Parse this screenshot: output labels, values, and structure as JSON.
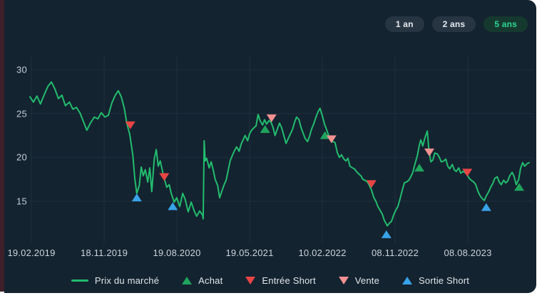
{
  "period_buttons": [
    {
      "label": "1 an",
      "selected": false
    },
    {
      "label": "2 ans",
      "selected": false
    },
    {
      "label": "5 ans",
      "selected": true
    }
  ],
  "legend": [
    {
      "label": "Prix du marché",
      "swatch": "line",
      "color": "#22bd6e"
    },
    {
      "label": "Achat",
      "swatch": "triangle-up",
      "color": "#1fa45c"
    },
    {
      "label": "Entrée Short",
      "swatch": "triangle-down",
      "color": "#e84545"
    },
    {
      "label": "Vente",
      "swatch": "triangle-down",
      "color": "#f29191"
    },
    {
      "label": "Sortie Short",
      "swatch": "triangle-up",
      "color": "#38a3e8"
    }
  ],
  "colors": {
    "background": "#142330",
    "grid": "#1e2f3c",
    "line": "#22bd6e",
    "achat": "#1fa45c",
    "entree_short": "#e84545",
    "vente": "#f29191",
    "sortie_short": "#38a3e8"
  },
  "chart_data": {
    "type": "line",
    "title": "",
    "series_name": "Prix du marché",
    "x_tick_labels": [
      "19.02.2019",
      "18.11.2019",
      "19.08.2020",
      "19.05.2021",
      "10.02.2022",
      "08.11.2022",
      "08.08.2023"
    ],
    "y_ticks": [
      30,
      25,
      20,
      15
    ],
    "ylim": [
      10.5,
      31.5
    ],
    "grid": true,
    "legend_position": "bottom",
    "points": [
      [
        0.0,
        26.9
      ],
      [
        0.007,
        26.3
      ],
      [
        0.014,
        27.0
      ],
      [
        0.021,
        26.1
      ],
      [
        0.029,
        27.2
      ],
      [
        0.036,
        28.1
      ],
      [
        0.043,
        28.6
      ],
      [
        0.05,
        27.8
      ],
      [
        0.057,
        26.7
      ],
      [
        0.064,
        27.1
      ],
      [
        0.071,
        25.9
      ],
      [
        0.079,
        26.3
      ],
      [
        0.086,
        25.5
      ],
      [
        0.093,
        25.7
      ],
      [
        0.1,
        25.1
      ],
      [
        0.107,
        24.1
      ],
      [
        0.114,
        23.1
      ],
      [
        0.121,
        23.9
      ],
      [
        0.129,
        24.6
      ],
      [
        0.136,
        24.4
      ],
      [
        0.143,
        25.1
      ],
      [
        0.15,
        24.6
      ],
      [
        0.157,
        24.8
      ],
      [
        0.164,
        26.2
      ],
      [
        0.171,
        27.1
      ],
      [
        0.177,
        27.6
      ],
      [
        0.183,
        26.9
      ],
      [
        0.189,
        25.6
      ],
      [
        0.194,
        23.9
      ],
      [
        0.2,
        22.6
      ],
      [
        0.206,
        20.3
      ],
      [
        0.21,
        17.6
      ],
      [
        0.214,
        15.9
      ],
      [
        0.219,
        16.8
      ],
      [
        0.223,
        18.9
      ],
      [
        0.227,
        17.9
      ],
      [
        0.231,
        18.6
      ],
      [
        0.236,
        17.2
      ],
      [
        0.24,
        18.8
      ],
      [
        0.244,
        16.1
      ],
      [
        0.249,
        19.8
      ],
      [
        0.253,
        20.9
      ],
      [
        0.257,
        19.0
      ],
      [
        0.261,
        19.6
      ],
      [
        0.266,
        18.3
      ],
      [
        0.27,
        17.4
      ],
      [
        0.274,
        16.6
      ],
      [
        0.279,
        16.9
      ],
      [
        0.283,
        15.9
      ],
      [
        0.289,
        14.9
      ],
      [
        0.294,
        15.4
      ],
      [
        0.3,
        14.4
      ],
      [
        0.306,
        15.9
      ],
      [
        0.311,
        15.2
      ],
      [
        0.317,
        13.8
      ],
      [
        0.323,
        14.9
      ],
      [
        0.329,
        13.9
      ],
      [
        0.334,
        13.3
      ],
      [
        0.34,
        13.9
      ],
      [
        0.346,
        13.4
      ],
      [
        0.347,
        13.0
      ],
      [
        0.349,
        21.9
      ],
      [
        0.351,
        19.6
      ],
      [
        0.354,
        19.9
      ],
      [
        0.359,
        18.8
      ],
      [
        0.363,
        19.5
      ],
      [
        0.367,
        18.6
      ],
      [
        0.371,
        17.5
      ],
      [
        0.376,
        16.8
      ],
      [
        0.38,
        15.4
      ],
      [
        0.384,
        16.1
      ],
      [
        0.389,
        16.9
      ],
      [
        0.393,
        17.4
      ],
      [
        0.397,
        18.5
      ],
      [
        0.401,
        19.6
      ],
      [
        0.406,
        20.3
      ],
      [
        0.41,
        20.8
      ],
      [
        0.414,
        21.2
      ],
      [
        0.419,
        20.7
      ],
      [
        0.423,
        21.5
      ],
      [
        0.427,
        22.0
      ],
      [
        0.431,
        22.5
      ],
      [
        0.436,
        21.9
      ],
      [
        0.44,
        22.7
      ],
      [
        0.444,
        23.1
      ],
      [
        0.449,
        23.4
      ],
      [
        0.453,
        23.6
      ],
      [
        0.457,
        24.9
      ],
      [
        0.461,
        24.2
      ],
      [
        0.466,
        23.7
      ],
      [
        0.47,
        24.3
      ],
      [
        0.474,
        23.8
      ],
      [
        0.479,
        24.2
      ],
      [
        0.483,
        24.0
      ],
      [
        0.487,
        23.4
      ],
      [
        0.491,
        22.5
      ],
      [
        0.496,
        23.3
      ],
      [
        0.5,
        23.9
      ],
      [
        0.504,
        23.4
      ],
      [
        0.509,
        22.4
      ],
      [
        0.513,
        21.6
      ],
      [
        0.517,
        22.1
      ],
      [
        0.521,
        22.6
      ],
      [
        0.526,
        23.2
      ],
      [
        0.53,
        24.0
      ],
      [
        0.534,
        24.6
      ],
      [
        0.539,
        24.3
      ],
      [
        0.543,
        23.4
      ],
      [
        0.547,
        22.8
      ],
      [
        0.551,
        22.2
      ],
      [
        0.556,
        21.8
      ],
      [
        0.56,
        22.4
      ],
      [
        0.564,
        23.2
      ],
      [
        0.569,
        23.9
      ],
      [
        0.573,
        24.6
      ],
      [
        0.577,
        25.2
      ],
      [
        0.581,
        25.6
      ],
      [
        0.586,
        24.7
      ],
      [
        0.59,
        23.8
      ],
      [
        0.594,
        23.2
      ],
      [
        0.599,
        22.4
      ],
      [
        0.603,
        22.0
      ],
      [
        0.607,
        21.8
      ],
      [
        0.611,
        21.7
      ],
      [
        0.616,
        20.5
      ],
      [
        0.62,
        20.0
      ],
      [
        0.624,
        20.3
      ],
      [
        0.629,
        19.8
      ],
      [
        0.633,
        19.6
      ],
      [
        0.637,
        19.9
      ],
      [
        0.641,
        19.0
      ],
      [
        0.646,
        18.8
      ],
      [
        0.65,
        18.7
      ],
      [
        0.654,
        18.4
      ],
      [
        0.659,
        18.1
      ],
      [
        0.663,
        17.9
      ],
      [
        0.667,
        17.5
      ],
      [
        0.671,
        17.4
      ],
      [
        0.676,
        17.2
      ],
      [
        0.68,
        16.8
      ],
      [
        0.684,
        16.3
      ],
      [
        0.689,
        15.4
      ],
      [
        0.693,
        15.0
      ],
      [
        0.697,
        14.4
      ],
      [
        0.701,
        14.0
      ],
      [
        0.706,
        13.5
      ],
      [
        0.71,
        12.8
      ],
      [
        0.716,
        12.2
      ],
      [
        0.72,
        12.5
      ],
      [
        0.724,
        12.7
      ],
      [
        0.729,
        13.5
      ],
      [
        0.733,
        14.0
      ],
      [
        0.737,
        14.4
      ],
      [
        0.741,
        15.2
      ],
      [
        0.746,
        16.3
      ],
      [
        0.75,
        17.1
      ],
      [
        0.754,
        17.2
      ],
      [
        0.759,
        17.4
      ],
      [
        0.763,
        17.8
      ],
      [
        0.767,
        18.3
      ],
      [
        0.771,
        19.2
      ],
      [
        0.776,
        20.2
      ],
      [
        0.78,
        21.4
      ],
      [
        0.783,
        22.0
      ],
      [
        0.787,
        21.3
      ],
      [
        0.791,
        22.2
      ],
      [
        0.796,
        23.0
      ],
      [
        0.799,
        20.9
      ],
      [
        0.803,
        19.5
      ],
      [
        0.807,
        19.7
      ],
      [
        0.811,
        20.5
      ],
      [
        0.816,
        20.4
      ],
      [
        0.82,
        20.0
      ],
      [
        0.824,
        19.5
      ],
      [
        0.829,
        19.6
      ],
      [
        0.833,
        19.8
      ],
      [
        0.837,
        19.0
      ],
      [
        0.841,
        18.7
      ],
      [
        0.846,
        19.2
      ],
      [
        0.85,
        18.6
      ],
      [
        0.854,
        18.4
      ],
      [
        0.859,
        18.8
      ],
      [
        0.863,
        18.2
      ],
      [
        0.867,
        18.4
      ],
      [
        0.871,
        18.3
      ],
      [
        0.876,
        18.0
      ],
      [
        0.88,
        17.6
      ],
      [
        0.884,
        17.4
      ],
      [
        0.889,
        17.2
      ],
      [
        0.893,
        16.9
      ],
      [
        0.897,
        16.2
      ],
      [
        0.901,
        15.7
      ],
      [
        0.906,
        15.3
      ],
      [
        0.91,
        15.1
      ],
      [
        0.914,
        15.6
      ],
      [
        0.919,
        16.1
      ],
      [
        0.923,
        16.6
      ],
      [
        0.927,
        17.0
      ],
      [
        0.931,
        17.6
      ],
      [
        0.936,
        17.8
      ],
      [
        0.94,
        17.2
      ],
      [
        0.944,
        16.9
      ],
      [
        0.949,
        17.4
      ],
      [
        0.953,
        17.1
      ],
      [
        0.957,
        17.3
      ],
      [
        0.961,
        17.9
      ],
      [
        0.966,
        18.3
      ],
      [
        0.97,
        17.8
      ],
      [
        0.974,
        16.9
      ],
      [
        0.979,
        17.5
      ],
      [
        0.983,
        18.8
      ],
      [
        0.987,
        19.4
      ],
      [
        0.991,
        19.0
      ],
      [
        0.996,
        19.3
      ],
      [
        1.0,
        19.4
      ]
    ],
    "markers": [
      {
        "type": "entree_short",
        "f": 0.201,
        "p": 23.7
      },
      {
        "type": "sortie_short",
        "f": 0.214,
        "p": 15.4
      },
      {
        "type": "entree_short",
        "f": 0.269,
        "p": 17.8
      },
      {
        "type": "sortie_short",
        "f": 0.286,
        "p": 14.4
      },
      {
        "type": "achat",
        "f": 0.471,
        "p": 23.2
      },
      {
        "type": "vente",
        "f": 0.484,
        "p": 24.5
      },
      {
        "type": "achat",
        "f": 0.591,
        "p": 22.5
      },
      {
        "type": "vente",
        "f": 0.604,
        "p": 22.1
      },
      {
        "type": "entree_short",
        "f": 0.684,
        "p": 17.0
      },
      {
        "type": "sortie_short",
        "f": 0.714,
        "p": 11.2
      },
      {
        "type": "achat",
        "f": 0.78,
        "p": 18.8
      },
      {
        "type": "vente",
        "f": 0.8,
        "p": 20.6
      },
      {
        "type": "entree_short",
        "f": 0.876,
        "p": 18.3
      },
      {
        "type": "sortie_short",
        "f": 0.914,
        "p": 14.3
      },
      {
        "type": "achat",
        "f": 0.98,
        "p": 16.6
      }
    ]
  }
}
